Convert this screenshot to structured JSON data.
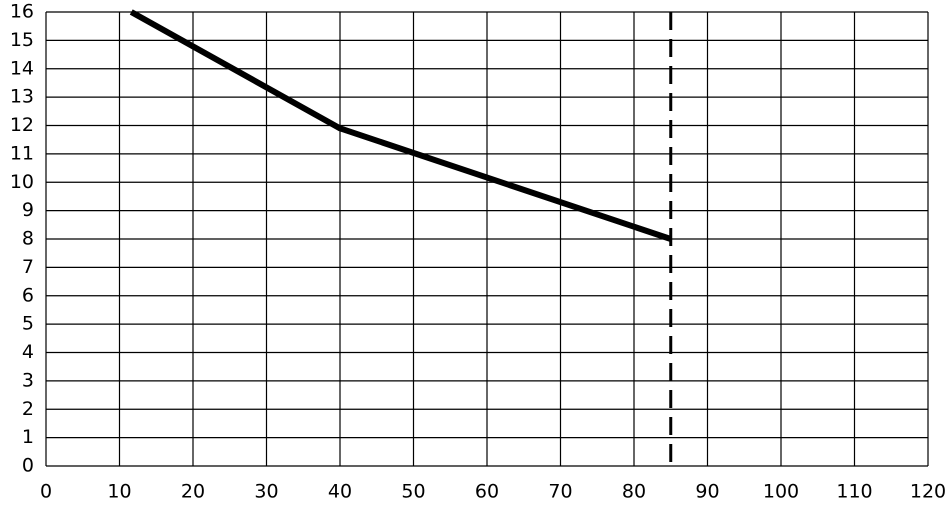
{
  "chart_data": {
    "type": "line",
    "x": [
      11.6,
      40,
      85
    ],
    "values": [
      16,
      11.9,
      8
    ],
    "color": "#000000",
    "xlim": [
      0,
      120
    ],
    "xticks": [
      0,
      10,
      20,
      30,
      40,
      50,
      60,
      70,
      80,
      90,
      100,
      110,
      120
    ],
    "ylim": [
      0,
      16
    ],
    "yticks": [
      0,
      1,
      2,
      3,
      4,
      5,
      6,
      7,
      8,
      9,
      10,
      11,
      12,
      13,
      14,
      15,
      16
    ],
    "grid": true,
    "reference_x": 85
  }
}
